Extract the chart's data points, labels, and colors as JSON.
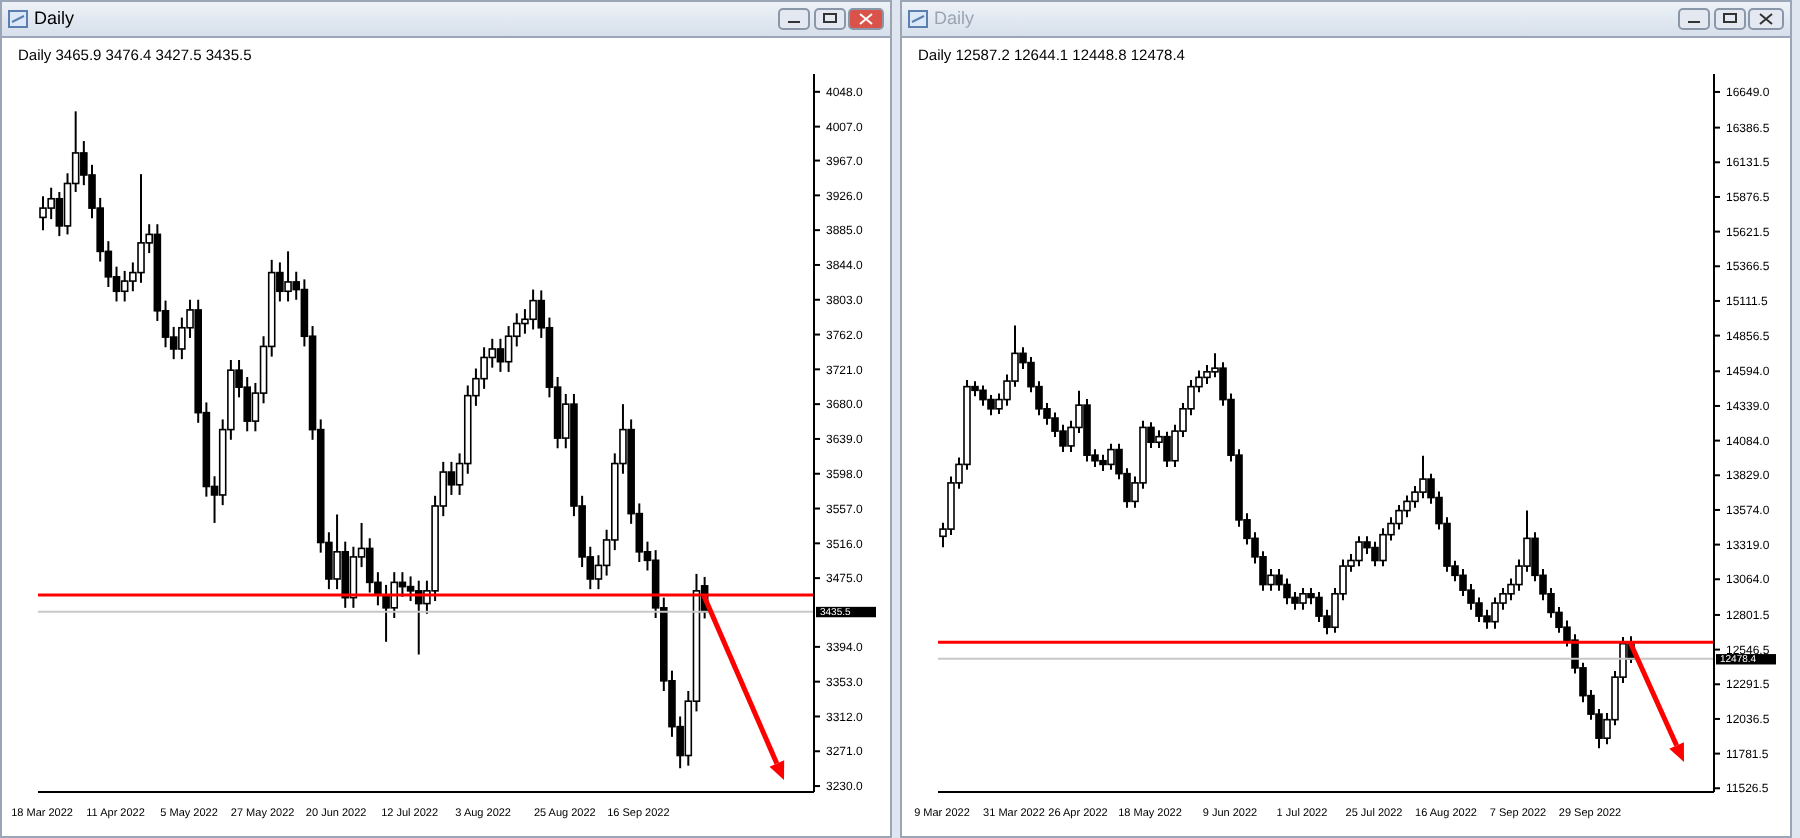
{
  "chart_data": [
    {
      "type": "candlestick",
      "title": "Daily",
      "subtitle": "3465.9 3476.4 3427.5 3435.5",
      "color": "#000000",
      "categories": [
        "18 Mar 2022",
        null,
        null,
        null,
        null,
        null,
        null,
        null,
        null,
        "11 Apr 2022",
        null,
        null,
        null,
        null,
        null,
        null,
        null,
        null,
        "5 May 2022",
        null,
        null,
        null,
        null,
        null,
        null,
        null,
        null,
        "27 May 2022",
        null,
        null,
        null,
        null,
        null,
        null,
        null,
        null,
        "20 Jun 2022",
        null,
        null,
        null,
        null,
        null,
        null,
        null,
        null,
        "12 Jul 2022",
        null,
        null,
        null,
        null,
        null,
        null,
        null,
        null,
        "3 Aug 2022",
        null,
        null,
        null,
        null,
        null,
        null,
        null,
        null,
        null,
        "25 Aug 2022",
        null,
        null,
        null,
        null,
        null,
        null,
        null,
        null,
        "16 Sep 2022",
        null,
        null,
        null,
        null,
        null,
        null,
        null,
        null,
        null,
        null,
        null,
        null,
        null,
        null,
        null,
        null,
        null,
        null,
        null,
        null,
        null
      ],
      "ohlc": [
        [
          3900,
          3925,
          3885,
          3911
        ],
        [
          3911,
          3935,
          3898,
          3922
        ],
        [
          3922,
          3930,
          3878,
          3890
        ],
        [
          3890,
          3952,
          3880,
          3940
        ],
        [
          3940,
          4025,
          3930,
          3976
        ],
        [
          3976,
          3990,
          3938,
          3950
        ],
        [
          3950,
          3962,
          3899,
          3911
        ],
        [
          3911,
          3923,
          3848,
          3860
        ],
        [
          3860,
          3872,
          3818,
          3830
        ],
        [
          3830,
          3842,
          3801,
          3813
        ],
        [
          3813,
          3837,
          3801,
          3825
        ],
        [
          3825,
          3847,
          3813,
          3835
        ],
        [
          3835,
          3951,
          3823,
          3870
        ],
        [
          3870,
          3892,
          3858,
          3880
        ],
        [
          3880,
          3892,
          3778,
          3790
        ],
        [
          3790,
          3802,
          3747,
          3759
        ],
        [
          3759,
          3771,
          3733,
          3745
        ],
        [
          3745,
          3782,
          3733,
          3770
        ],
        [
          3770,
          3803,
          3758,
          3791
        ],
        [
          3791,
          3803,
          3658,
          3670
        ],
        [
          3670,
          3682,
          3571,
          3583
        ],
        [
          3583,
          3595,
          3540,
          3573
        ],
        [
          3573,
          3662,
          3561,
          3650
        ],
        [
          3650,
          3732,
          3638,
          3720
        ],
        [
          3720,
          3732,
          3688,
          3700
        ],
        [
          3700,
          3712,
          3648,
          3660
        ],
        [
          3660,
          3705,
          3648,
          3693
        ],
        [
          3693,
          3760,
          3681,
          3748
        ],
        [
          3748,
          3850,
          3736,
          3835
        ],
        [
          3835,
          3847,
          3801,
          3813
        ],
        [
          3813,
          3860,
          3801,
          3824
        ],
        [
          3824,
          3836,
          3803,
          3815
        ],
        [
          3815,
          3827,
          3748,
          3760
        ],
        [
          3760,
          3772,
          3638,
          3650
        ],
        [
          3650,
          3662,
          3505,
          3517
        ],
        [
          3517,
          3529,
          3462,
          3474
        ],
        [
          3474,
          3550,
          3462,
          3506
        ],
        [
          3506,
          3518,
          3440,
          3452
        ],
        [
          3452,
          3512,
          3440,
          3500
        ],
        [
          3500,
          3540,
          3488,
          3510
        ],
        [
          3510,
          3522,
          3458,
          3470
        ],
        [
          3470,
          3482,
          3443,
          3455
        ],
        [
          3455,
          3467,
          3400,
          3440
        ],
        [
          3440,
          3482,
          3428,
          3470
        ],
        [
          3470,
          3482,
          3453,
          3465
        ],
        [
          3465,
          3477,
          3448,
          3460
        ],
        [
          3460,
          3472,
          3385,
          3445
        ],
        [
          3445,
          3472,
          3433,
          3460
        ],
        [
          3460,
          3572,
          3448,
          3560
        ],
        [
          3560,
          3612,
          3548,
          3600
        ],
        [
          3600,
          3612,
          3573,
          3585
        ],
        [
          3585,
          3622,
          3573,
          3610
        ],
        [
          3610,
          3702,
          3598,
          3690
        ],
        [
          3690,
          3722,
          3678,
          3710
        ],
        [
          3710,
          3747,
          3698,
          3735
        ],
        [
          3735,
          3757,
          3723,
          3745
        ],
        [
          3745,
          3757,
          3718,
          3730
        ],
        [
          3730,
          3772,
          3718,
          3760
        ],
        [
          3760,
          3787,
          3748,
          3775
        ],
        [
          3775,
          3792,
          3763,
          3780
        ],
        [
          3780,
          3815,
          3768,
          3802
        ],
        [
          3802,
          3814,
          3758,
          3770
        ],
        [
          3770,
          3782,
          3688,
          3700
        ],
        [
          3700,
          3712,
          3628,
          3640
        ],
        [
          3640,
          3692,
          3628,
          3680
        ],
        [
          3680,
          3692,
          3548,
          3560
        ],
        [
          3560,
          3572,
          3488,
          3500
        ],
        [
          3500,
          3512,
          3462,
          3474
        ],
        [
          3474,
          3502,
          3462,
          3490
        ],
        [
          3490,
          3532,
          3478,
          3520
        ],
        [
          3520,
          3622,
          3508,
          3610
        ],
        [
          3610,
          3680,
          3598,
          3650
        ],
        [
          3650,
          3662,
          3539,
          3551
        ],
        [
          3551,
          3563,
          3494,
          3506
        ],
        [
          3506,
          3518,
          3484,
          3496
        ],
        [
          3496,
          3508,
          3428,
          3440
        ],
        [
          3440,
          3452,
          3342,
          3354
        ],
        [
          3354,
          3366,
          3288,
          3300
        ],
        [
          3300,
          3312,
          3251,
          3266
        ],
        [
          3266,
          3342,
          3254,
          3330
        ],
        [
          3330,
          3480,
          3318,
          3460
        ],
        [
          3465.9,
          3476.4,
          3427.5,
          3435.5
        ],
        null,
        null,
        null,
        null,
        null,
        null,
        null,
        null,
        null,
        null,
        null,
        null,
        null
      ],
      "ylim": [
        3223,
        4069
      ],
      "yticks": [
        {
          "value": 4048,
          "label": "4048.0"
        },
        {
          "value": 4007,
          "label": "4007.0"
        },
        {
          "value": 3967,
          "label": "3967.0"
        },
        {
          "value": 3926,
          "label": "3926.0"
        },
        {
          "value": 3885,
          "label": "3885.0"
        },
        {
          "value": 3844,
          "label": "3844.0"
        },
        {
          "value": 3803,
          "label": "3803.0"
        },
        {
          "value": 3762,
          "label": "3762.0"
        },
        {
          "value": 3721,
          "label": "3721.0"
        },
        {
          "value": 3680,
          "label": "3680.0"
        },
        {
          "value": 3639,
          "label": "3639.0"
        },
        {
          "value": 3598,
          "label": "3598.0"
        },
        {
          "value": 3557,
          "label": "3557.0"
        },
        {
          "value": 3516,
          "label": "3516.0"
        },
        {
          "value": 3475,
          "label": "3475.0"
        },
        {
          "value": 3394,
          "label": "3394.0"
        },
        {
          "value": 3353,
          "label": "3353.0"
        },
        {
          "value": 3312,
          "label": "3312.0"
        },
        {
          "value": 3271,
          "label": "3271.0"
        },
        {
          "value": 3230,
          "label": "3230.0"
        }
      ],
      "ref_lines": [
        {
          "axis": "y",
          "value": 3455,
          "color": "#ff0000"
        },
        {
          "axis": "y",
          "value": 3435.5,
          "label": "3435.5",
          "color": "#c8c8c8"
        }
      ]
    },
    {
      "type": "candlestick",
      "title": "Daily",
      "subtitle": "12587.2 12644.1 12448.8 12478.4",
      "color": "#000000",
      "categories": [
        "9 Mar 2022",
        null,
        null,
        null,
        null,
        null,
        null,
        null,
        null,
        "31 Mar 2022",
        null,
        null,
        null,
        null,
        null,
        null,
        null,
        "26 Apr 2022",
        null,
        null,
        null,
        null,
        null,
        null,
        null,
        null,
        "18 May 2022",
        null,
        null,
        null,
        null,
        null,
        null,
        null,
        null,
        null,
        "9 Jun 2022",
        null,
        null,
        null,
        null,
        null,
        null,
        null,
        null,
        "1 Jul 2022",
        null,
        null,
        null,
        null,
        null,
        null,
        null,
        null,
        "25 Jul 2022",
        null,
        null,
        null,
        null,
        null,
        null,
        null,
        null,
        "16 Aug 2022",
        null,
        null,
        null,
        null,
        null,
        null,
        null,
        null,
        "7 Sep 2022",
        null,
        null,
        null,
        null,
        null,
        null,
        null,
        null,
        "29 Sep 2022",
        null,
        null,
        null,
        null,
        null,
        null,
        null,
        null,
        null,
        null,
        null,
        null,
        null,
        null,
        null
      ],
      "ohlc": [
        [
          13380,
          13480,
          13300,
          13433
        ],
        [
          13433,
          13820,
          13390,
          13773
        ],
        [
          13773,
          13960,
          13730,
          13909
        ],
        [
          13909,
          14530,
          13870,
          14481
        ],
        [
          14481,
          14520,
          14410,
          14454
        ],
        [
          14454,
          14490,
          14340,
          14386
        ],
        [
          14386,
          14420,
          14270,
          14318
        ],
        [
          14318,
          14430,
          14280,
          14386
        ],
        [
          14386,
          14570,
          14340,
          14522
        ],
        [
          14522,
          14930,
          14480,
          14726
        ],
        [
          14726,
          14770,
          14610,
          14658
        ],
        [
          14658,
          14700,
          14440,
          14481
        ],
        [
          14481,
          14520,
          14270,
          14318
        ],
        [
          14318,
          14360,
          14200,
          14250
        ],
        [
          14250,
          14290,
          14110,
          14154
        ],
        [
          14154,
          14200,
          14000,
          14045
        ],
        [
          14045,
          14230,
          14000,
          14181
        ],
        [
          14181,
          14450,
          14140,
          14345
        ],
        [
          14345,
          14390,
          13930,
          13977
        ],
        [
          13977,
          14020,
          13890,
          13936
        ],
        [
          13936,
          13980,
          13860,
          13909
        ],
        [
          13909,
          14060,
          13870,
          14018
        ],
        [
          14018,
          14060,
          13800,
          13841
        ],
        [
          13841,
          13880,
          13590,
          13637
        ],
        [
          13637,
          13820,
          13590,
          13773
        ],
        [
          13773,
          14230,
          13730,
          14181
        ],
        [
          14181,
          14220,
          14030,
          14072
        ],
        [
          14072,
          14160,
          14030,
          14113
        ],
        [
          14113,
          14150,
          13890,
          13936
        ],
        [
          13936,
          14200,
          13890,
          14154
        ],
        [
          14154,
          14360,
          14110,
          14318
        ],
        [
          14318,
          14530,
          14270,
          14481
        ],
        [
          14481,
          14600,
          14440,
          14549
        ],
        [
          14549,
          14640,
          14500,
          14590
        ],
        [
          14590,
          14726,
          14550,
          14617
        ],
        [
          14617,
          14660,
          14340,
          14386
        ],
        [
          14386,
          14430,
          13930,
          13977
        ],
        [
          13977,
          14020,
          13450,
          13501
        ],
        [
          13501,
          13550,
          13320,
          13365
        ],
        [
          13365,
          13410,
          13180,
          13229
        ],
        [
          13229,
          13270,
          12980,
          13025
        ],
        [
          13025,
          13140,
          12980,
          13093
        ],
        [
          13093,
          13140,
          12980,
          13025
        ],
        [
          13025,
          13070,
          12880,
          12930
        ],
        [
          12930,
          12970,
          12840,
          12889
        ],
        [
          12889,
          13000,
          12840,
          12957
        ],
        [
          12957,
          13000,
          12880,
          12930
        ],
        [
          12930,
          12970,
          12750,
          12793
        ],
        [
          12793,
          12840,
          12660,
          12711
        ],
        [
          12711,
          13000,
          12670,
          12957
        ],
        [
          12957,
          13210,
          12910,
          13161
        ],
        [
          13161,
          13250,
          13120,
          13202
        ],
        [
          13202,
          13380,
          13160,
          13338
        ],
        [
          13338,
          13380,
          13250,
          13297
        ],
        [
          13297,
          13340,
          13160,
          13202
        ],
        [
          13202,
          13440,
          13160,
          13392
        ],
        [
          13392,
          13520,
          13350,
          13474
        ],
        [
          13474,
          13610,
          13430,
          13569
        ],
        [
          13569,
          13680,
          13520,
          13637
        ],
        [
          13637,
          13750,
          13590,
          13705
        ],
        [
          13705,
          13972,
          13660,
          13801
        ],
        [
          13801,
          13840,
          13620,
          13665
        ],
        [
          13665,
          13710,
          13430,
          13474
        ],
        [
          13474,
          13520,
          13120,
          13161
        ],
        [
          13161,
          13200,
          13050,
          13093
        ],
        [
          13093,
          13140,
          12940,
          12984
        ],
        [
          12984,
          13030,
          12840,
          12889
        ],
        [
          12889,
          12930,
          12750,
          12793
        ],
        [
          12793,
          12840,
          12700,
          12752
        ],
        [
          12752,
          12930,
          12700,
          12889
        ],
        [
          12889,
          13000,
          12840,
          12957
        ],
        [
          12957,
          13070,
          12910,
          13025
        ],
        [
          13025,
          13210,
          12980,
          13161
        ],
        [
          13161,
          13569,
          13120,
          13365
        ],
        [
          13365,
          13410,
          13050,
          13093
        ],
        [
          13093,
          13140,
          12910,
          12957
        ],
        [
          12957,
          13000,
          12780,
          12820
        ],
        [
          12820,
          12860,
          12670,
          12711
        ],
        [
          12711,
          12760,
          12570,
          12616
        ],
        [
          12616,
          12660,
          12370,
          12412
        ],
        [
          12412,
          12450,
          12160,
          12208
        ],
        [
          12208,
          12250,
          12030,
          12072
        ],
        [
          12072,
          12110,
          11820,
          11895
        ],
        [
          11895,
          12080,
          11850,
          12031
        ],
        [
          12031,
          12390,
          11990,
          12344
        ],
        [
          12344,
          12640,
          12300,
          12590
        ],
        [
          12587.2,
          12644.1,
          12448.8,
          12478.4
        ],
        null,
        null,
        null,
        null,
        null,
        null,
        null,
        null,
        null,
        null
      ],
      "ylim": [
        11499,
        16781
      ],
      "yticks": [
        {
          "value": 16649,
          "label": "16649.0"
        },
        {
          "value": 16386.5,
          "label": "16386.5"
        },
        {
          "value": 16131.5,
          "label": "16131.5"
        },
        {
          "value": 15876.5,
          "label": "15876.5"
        },
        {
          "value": 15621.5,
          "label": "15621.5"
        },
        {
          "value": 15366.5,
          "label": "15366.5"
        },
        {
          "value": 15111.5,
          "label": "15111.5"
        },
        {
          "value": 14856.5,
          "label": "14856.5"
        },
        {
          "value": 14594,
          "label": "14594.0"
        },
        {
          "value": 14339,
          "label": "14339.0"
        },
        {
          "value": 14084,
          "label": "14084.0"
        },
        {
          "value": 13829,
          "label": "13829.0"
        },
        {
          "value": 13574,
          "label": "13574.0"
        },
        {
          "value": 13319,
          "label": "13319.0"
        },
        {
          "value": 13064,
          "label": "13064.0"
        },
        {
          "value": 12801.5,
          "label": "12801.5"
        },
        {
          "value": 12546.5,
          "label": "12546.5"
        },
        {
          "value": 12291.5,
          "label": "12291.5"
        },
        {
          "value": 12036.5,
          "label": "12036.5"
        },
        {
          "value": 11781.5,
          "label": "11781.5"
        },
        {
          "value": 11526.5,
          "label": "11526.5"
        }
      ],
      "ref_lines": [
        {
          "axis": "y",
          "value": 12600,
          "color": "#ff0000"
        },
        {
          "axis": "y",
          "value": 12478.4,
          "label": "12478.4",
          "color": "#c8c8c8"
        }
      ]
    }
  ]
}
